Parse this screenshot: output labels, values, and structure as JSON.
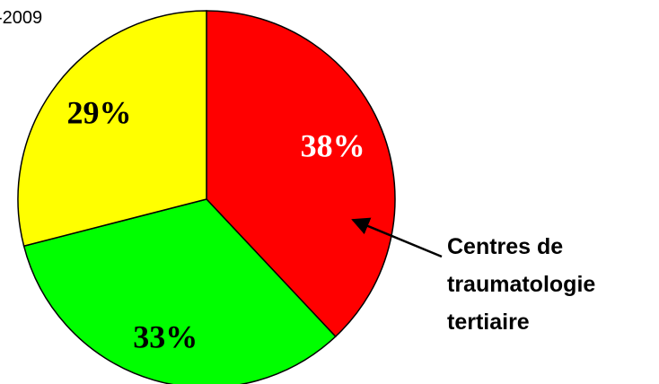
{
  "chart_data": {
    "type": "pie",
    "title": "-2009",
    "categories": [
      "Centres de traumatologie tertiaire",
      null,
      null
    ],
    "values": [
      38,
      33,
      29
    ],
    "value_labels": [
      "38%",
      "33%",
      "29%"
    ],
    "colors": [
      "#ff0000",
      "#00ff00",
      "#ffff00"
    ],
    "label_colors": [
      "#ffffff",
      "#000000",
      "#000000"
    ],
    "annotation": [
      "Centres de",
      "traumatologie",
      "tertiaire"
    ]
  }
}
